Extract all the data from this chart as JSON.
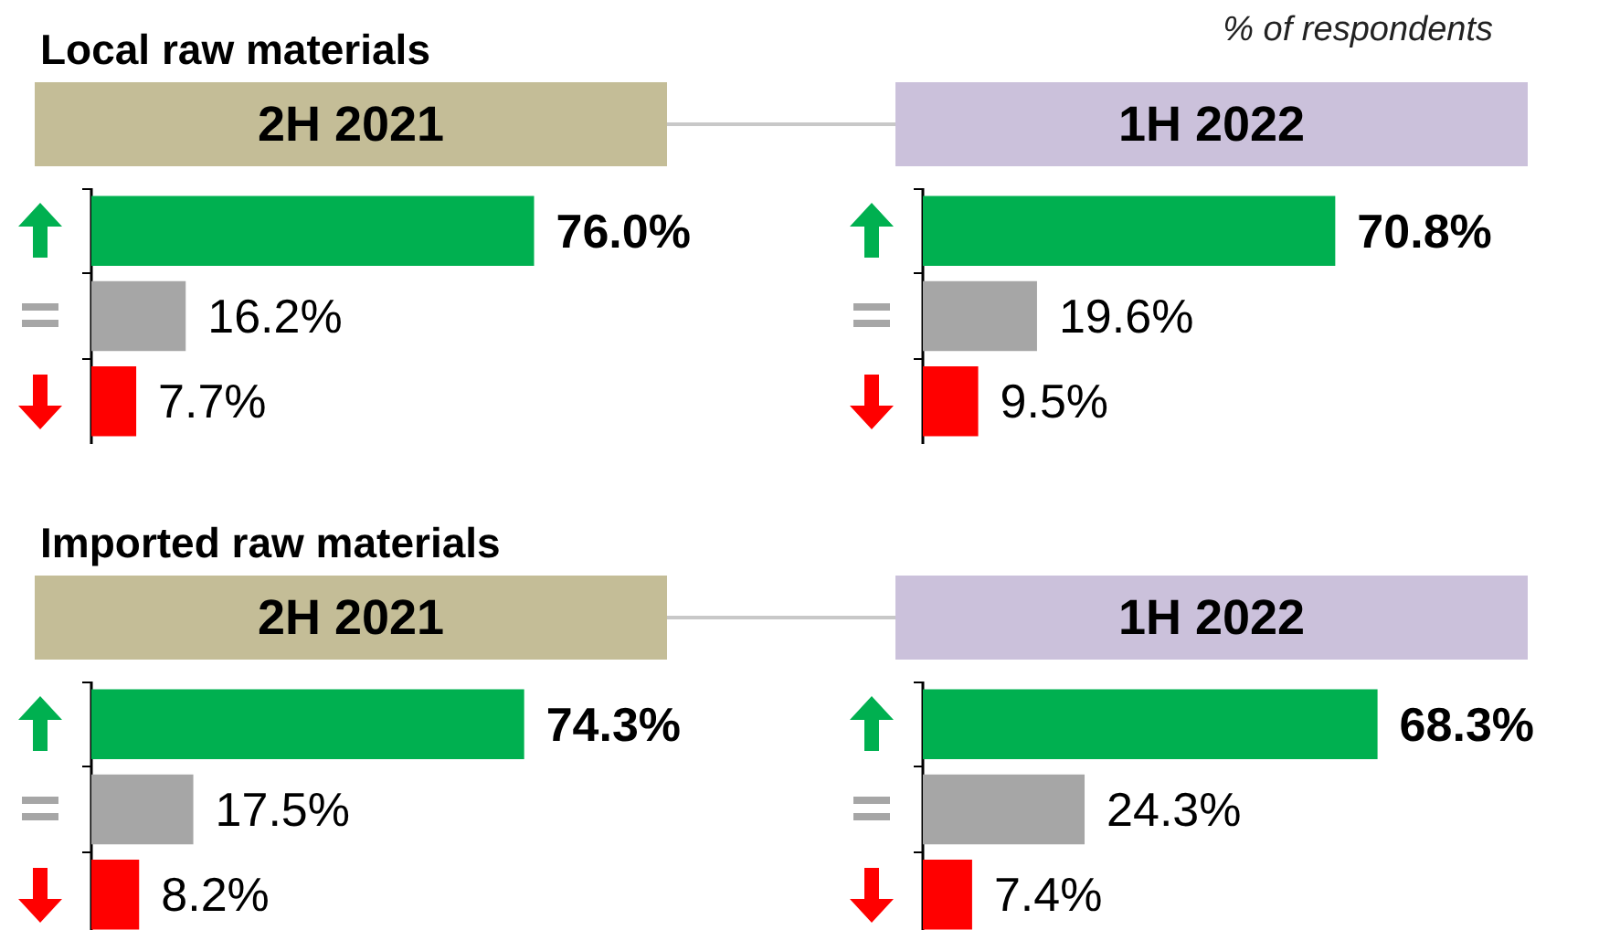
{
  "chart_data": [
    {
      "type": "bar",
      "orientation": "horizontal",
      "title": "Local raw materials",
      "subtitle": "2H 2021",
      "categories": [
        null,
        null,
        null
      ],
      "values": [
        76.0,
        16.2,
        7.7
      ],
      "colors": [
        "#00b050",
        "#a6a6a6",
        "#ff0000"
      ],
      "value_labels": [
        "76.0%",
        "16.2%",
        "7.7%"
      ],
      "tick_labels": false
    },
    {
      "type": "bar",
      "orientation": "horizontal",
      "subtitle": "1H 2022",
      "annotations": [
        "% of respondents"
      ],
      "categories": [
        null,
        null,
        null
      ],
      "values": [
        70.8,
        19.6,
        9.5
      ],
      "colors": [
        "#00b050",
        "#a6a6a6",
        "#ff0000"
      ],
      "value_labels": [
        "70.8%",
        "19.6%",
        "9.5%"
      ],
      "tick_labels": false
    },
    {
      "type": "bar",
      "orientation": "horizontal",
      "title": "Imported raw materials",
      "subtitle": "2H 2021",
      "categories": [
        null,
        null,
        null
      ],
      "values": [
        74.3,
        17.5,
        8.2
      ],
      "colors": [
        "#00b050",
        "#a6a6a6",
        "#ff0000"
      ],
      "value_labels": [
        "74.3%",
        "17.5%",
        "8.2%"
      ],
      "tick_labels": false
    },
    {
      "type": "bar",
      "orientation": "horizontal",
      "subtitle": "1H 2022",
      "categories": [
        null,
        null,
        null
      ],
      "values": [
        68.3,
        24.3,
        7.4
      ],
      "colors": [
        "#00b050",
        "#a6a6a6",
        "#ff0000"
      ],
      "value_labels": [
        "68.3%",
        "24.3%",
        "7.4%"
      ],
      "tick_labels": false
    }
  ]
}
